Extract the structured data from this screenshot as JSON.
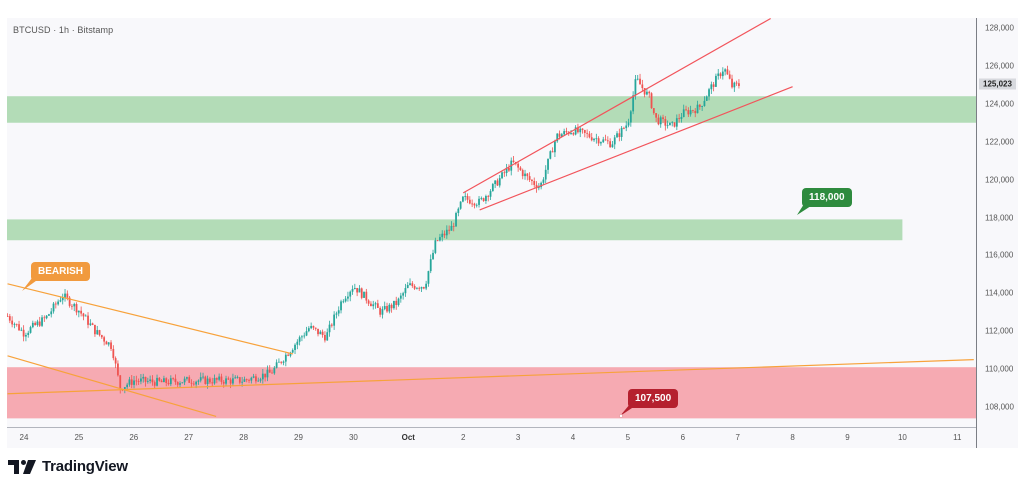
{
  "header": {
    "title": "BTCUSD · 1h · Bitstamp"
  },
  "branding": {
    "logo_text": "TradingView"
  },
  "price_axis": {
    "ticks": [
      "128,000",
      "126,000",
      "124,000",
      "122,000",
      "120,000",
      "118,000",
      "116,000",
      "114,000",
      "112,000",
      "110,000",
      "108,000"
    ],
    "tick_values": [
      128000,
      126000,
      124000,
      122000,
      120000,
      118000,
      116000,
      114000,
      112000,
      110000,
      108000
    ],
    "last_price_label": "125,023",
    "last_price": 125023
  },
  "time_axis": {
    "ticks": [
      "24",
      "25",
      "26",
      "27",
      "28",
      "29",
      "30",
      "Oct",
      "2",
      "3",
      "4",
      "5",
      "6",
      "7",
      "8",
      "9",
      "10",
      "11"
    ]
  },
  "annotations": {
    "bearish_label": "BEARISH",
    "resistance_label": "118,000",
    "support_label": "107,500"
  },
  "colors": {
    "background": "#f8f8fb",
    "up_candle": "#26a69a",
    "down_candle": "#ef5350",
    "green_zone": "#b3dcb7",
    "red_zone": "#f6aab2",
    "orange_line": "#f7a23b",
    "red_line": "#f2545b",
    "bearish_callout": "#f19a3e",
    "green_callout": "#2e8b3e",
    "red_callout": "#b5202e"
  },
  "chart_data": {
    "type": "candlestick",
    "title": "BTCUSD · 1h · Bitstamp",
    "xlabel": "",
    "ylabel": "",
    "ylim": [
      107000,
      128500
    ],
    "x_ticks": [
      "24",
      "25",
      "26",
      "27",
      "28",
      "29",
      "30",
      "Oct",
      "2",
      "3",
      "4",
      "5",
      "6",
      "7",
      "8",
      "9",
      "10",
      "11"
    ],
    "y_ticks": [
      108000,
      110000,
      112000,
      114000,
      116000,
      118000,
      120000,
      122000,
      124000,
      126000,
      128000
    ],
    "grid": false,
    "last_price": 125023,
    "approx_path": [
      {
        "x": "23.7",
        "close": 112800
      },
      {
        "x": "24",
        "close": 111900
      },
      {
        "x": "24.4",
        "close": 112700
      },
      {
        "x": "24.7",
        "close": 113900
      },
      {
        "x": "25",
        "close": 113100
      },
      {
        "x": "25.3",
        "close": 112000
      },
      {
        "x": "25.6",
        "close": 111200
      },
      {
        "x": "25.75",
        "close": 109000
      },
      {
        "x": "26",
        "close": 109400
      },
      {
        "x": "26.5",
        "close": 109300
      },
      {
        "x": "27",
        "close": 109400
      },
      {
        "x": "27.5",
        "close": 109400
      },
      {
        "x": "28",
        "close": 109400
      },
      {
        "x": "28.5",
        "close": 109800
      },
      {
        "x": "28.9",
        "close": 111200
      },
      {
        "x": "29.2",
        "close": 112200
      },
      {
        "x": "29.5",
        "close": 111700
      },
      {
        "x": "29.8",
        "close": 113700
      },
      {
        "x": "30",
        "close": 114400
      },
      {
        "x": "30.5",
        "close": 113000
      },
      {
        "x": "30.8",
        "close": 113500
      },
      {
        "x": "Oct 1",
        "close": 114400
      },
      {
        "x": "1.3",
        "close": 114400
      },
      {
        "x": "1.5",
        "close": 116700
      },
      {
        "x": "1.8",
        "close": 117500
      },
      {
        "x": "2",
        "close": 119000
      },
      {
        "x": "2.3",
        "close": 118800
      },
      {
        "x": "2.6",
        "close": 119800
      },
      {
        "x": "2.9",
        "close": 120900
      },
      {
        "x": "3.2",
        "close": 120000
      },
      {
        "x": "3.4",
        "close": 119600
      },
      {
        "x": "3.7",
        "close": 122300
      },
      {
        "x": "4",
        "close": 122600
      },
      {
        "x": "4.3",
        "close": 122300
      },
      {
        "x": "4.7",
        "close": 121900
      },
      {
        "x": "5",
        "close": 123000
      },
      {
        "x": "5.15",
        "close": 125300
      },
      {
        "x": "5.4",
        "close": 124300
      },
      {
        "x": "5.5",
        "close": 123200
      },
      {
        "x": "5.8",
        "close": 122800
      },
      {
        "x": "6",
        "close": 123500
      },
      {
        "x": "6.3",
        "close": 123800
      },
      {
        "x": "6.5",
        "close": 124800
      },
      {
        "x": "6.75",
        "close": 125900
      },
      {
        "x": "6.9",
        "close": 124900
      },
      {
        "x": "7.05",
        "close": 125023
      }
    ],
    "zones": [
      {
        "name": "resistance-zone-upper",
        "color": "green",
        "from": 123000,
        "to": 124400,
        "x_start": "23.7",
        "x_end": "right-edge"
      },
      {
        "name": "resistance-zone-118k",
        "color": "green",
        "from": 116800,
        "to": 117900,
        "x_start": "23.7",
        "x_end": "10"
      },
      {
        "name": "support-zone-107.5k",
        "color": "red",
        "from": 107400,
        "to": 110100,
        "x_start": "23.7",
        "x_end": "right-edge"
      }
    ],
    "trendlines": [
      {
        "name": "bearish-channel-upper",
        "color": "orange",
        "p1": {
          "x": "23.7",
          "y": 114500
        },
        "p2": {
          "x": "28.9",
          "y": 110800
        }
      },
      {
        "name": "bearish-channel-lower",
        "color": "orange",
        "p1": {
          "x": "23.7",
          "y": 110700
        },
        "p2": {
          "x": "27.5",
          "y": 107500
        }
      },
      {
        "name": "rising-support-long",
        "color": "orange",
        "p1": {
          "x": "23.7",
          "y": 108700
        },
        "p2": {
          "x": "11.3",
          "y": 110500
        }
      },
      {
        "name": "rising-wedge-upper",
        "color": "red",
        "p1": {
          "x": "2",
          "y": 119300
        },
        "p2": {
          "x": "7.6",
          "y": 128500
        }
      },
      {
        "name": "rising-wedge-lower",
        "color": "red",
        "p1": {
          "x": "2.3",
          "y": 118400
        },
        "p2": {
          "x": "8",
          "y": 124900
        }
      }
    ],
    "callouts": [
      {
        "text": "BEARISH",
        "color": "orange"
      },
      {
        "text": "118,000",
        "color": "green"
      },
      {
        "text": "107,500",
        "color": "red"
      }
    ]
  }
}
